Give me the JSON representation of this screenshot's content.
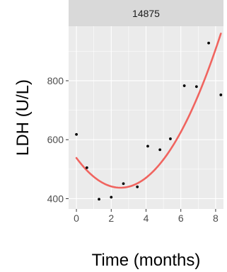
{
  "chart_data": {
    "type": "scatter",
    "facet_label": "14875",
    "xlabel": "Time (months)",
    "ylabel": "LDH (U/L)",
    "xlim": [
      -0.45,
      8.45
    ],
    "ylim": [
      365,
      985
    ],
    "x_ticks": [
      0,
      2,
      4,
      6,
      8
    ],
    "y_ticks": [
      400,
      600,
      800
    ],
    "grid": true,
    "points": [
      {
        "x": 0.0,
        "y": 618
      },
      {
        "x": 0.6,
        "y": 505
      },
      {
        "x": 1.3,
        "y": 398
      },
      {
        "x": 2.0,
        "y": 405
      },
      {
        "x": 2.7,
        "y": 451
      },
      {
        "x": 3.5,
        "y": 440
      },
      {
        "x": 4.1,
        "y": 578
      },
      {
        "x": 4.8,
        "y": 566
      },
      {
        "x": 5.4,
        "y": 603
      },
      {
        "x": 6.2,
        "y": 783
      },
      {
        "x": 6.9,
        "y": 780
      },
      {
        "x": 7.6,
        "y": 928
      },
      {
        "x": 8.3,
        "y": 752
      }
    ],
    "fit_curve": {
      "type": "quadratic",
      "x_range": [
        0,
        8.3
      ],
      "points": [
        {
          "x": 0.0,
          "y": 538
        },
        {
          "x": 2.1,
          "y": 440
        },
        {
          "x": 4.0,
          "y": 508
        },
        {
          "x": 8.3,
          "y": 960
        }
      ]
    },
    "colors": {
      "panel_background": "#ebebeb",
      "grid_major": "#ffffff",
      "strip_background": "#d9d9d9",
      "fit_line": "#f0645f",
      "points": "#000000"
    }
  }
}
